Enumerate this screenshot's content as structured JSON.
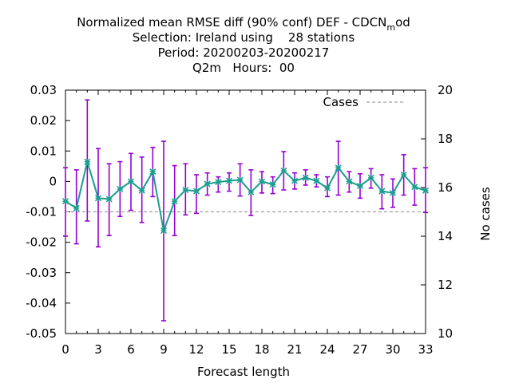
{
  "chart_data": {
    "type": "line",
    "title_lines": [
      "Normalized mean RMSE diff (90% conf) DEF - CDCN",
      "Selection: Ireland using    28 stations",
      "Period: 20200203-20200217",
      "Q2m   Hours:  00"
    ],
    "title_sub": "m",
    "title_suffix": "od",
    "xlabel": "Forecast length",
    "ylabel": "",
    "y2label": "No cases",
    "xlim": [
      0,
      33
    ],
    "ylim": [
      -0.05,
      0.03
    ],
    "y2lim": [
      10,
      20
    ],
    "xticks": [
      "0",
      "3",
      "6",
      "9",
      "12",
      "15",
      "18",
      "21",
      "24",
      "27",
      "30",
      "33"
    ],
    "yticks": [
      "0.03",
      "0.02",
      "0.01",
      "0",
      "-0.01",
      "-0.02",
      "-0.03",
      "-0.04",
      "-0.05"
    ],
    "y2ticks": [
      "20",
      "18",
      "16",
      "14",
      "12",
      "10"
    ],
    "grid": false,
    "legend_position": "top-right",
    "series": [
      {
        "name": "",
        "color": "#1a9e8f",
        "errorbar_color": "#9400d3",
        "x": [
          0,
          1,
          2,
          3,
          4,
          5,
          6,
          7,
          8,
          9,
          10,
          11,
          12,
          13,
          14,
          15,
          16,
          17,
          18,
          19,
          20,
          21,
          22,
          23,
          24,
          25,
          26,
          27,
          28,
          29,
          30,
          31,
          32,
          33
        ],
        "y": [
          -0.0065,
          -0.0088,
          0.0065,
          -0.0055,
          -0.0058,
          -0.0025,
          0.0,
          -0.003,
          0.0032,
          -0.0162,
          -0.0065,
          -0.0028,
          -0.0032,
          -0.0008,
          -0.0002,
          0.0002,
          0.0005,
          -0.0035,
          0.0,
          -0.001,
          0.0035,
          0.0002,
          0.0012,
          0.0002,
          -0.0022,
          0.0045,
          0.0,
          -0.0015,
          0.0012,
          -0.0032,
          -0.0038,
          0.0022,
          -0.0018,
          -0.003
        ],
        "err_low": [
          -0.018,
          -0.0205,
          -0.013,
          -0.0215,
          -0.0178,
          -0.0115,
          -0.0095,
          -0.0135,
          -0.005,
          -0.0458,
          -0.0178,
          -0.011,
          -0.0105,
          -0.0045,
          -0.0035,
          -0.0032,
          -0.0048,
          -0.0112,
          -0.0038,
          -0.004,
          -0.0028,
          -0.0025,
          -0.0012,
          -0.0018,
          -0.005,
          -0.0045,
          -0.0035,
          -0.0055,
          -0.0022,
          -0.009,
          -0.0085,
          -0.0045,
          -0.0078,
          -0.0102
        ],
        "err_high": [
          0.0045,
          0.0038,
          0.0268,
          0.0108,
          0.0058,
          0.0065,
          0.0092,
          0.008,
          0.0112,
          0.0132,
          0.0052,
          0.0058,
          0.0022,
          0.0028,
          0.0015,
          0.0028,
          0.0058,
          0.0038,
          0.0032,
          0.0015,
          0.0098,
          0.0028,
          0.0038,
          0.0022,
          0.0015,
          0.0132,
          0.0032,
          0.0025,
          0.0042,
          0.0022,
          0.0008,
          0.0088,
          0.0042,
          0.0045
        ]
      },
      {
        "name": "Cases",
        "color": "#a0a0a0",
        "dashed": true,
        "axis": "y2",
        "x": [
          0,
          33
        ],
        "y": [
          15,
          15
        ]
      }
    ]
  }
}
